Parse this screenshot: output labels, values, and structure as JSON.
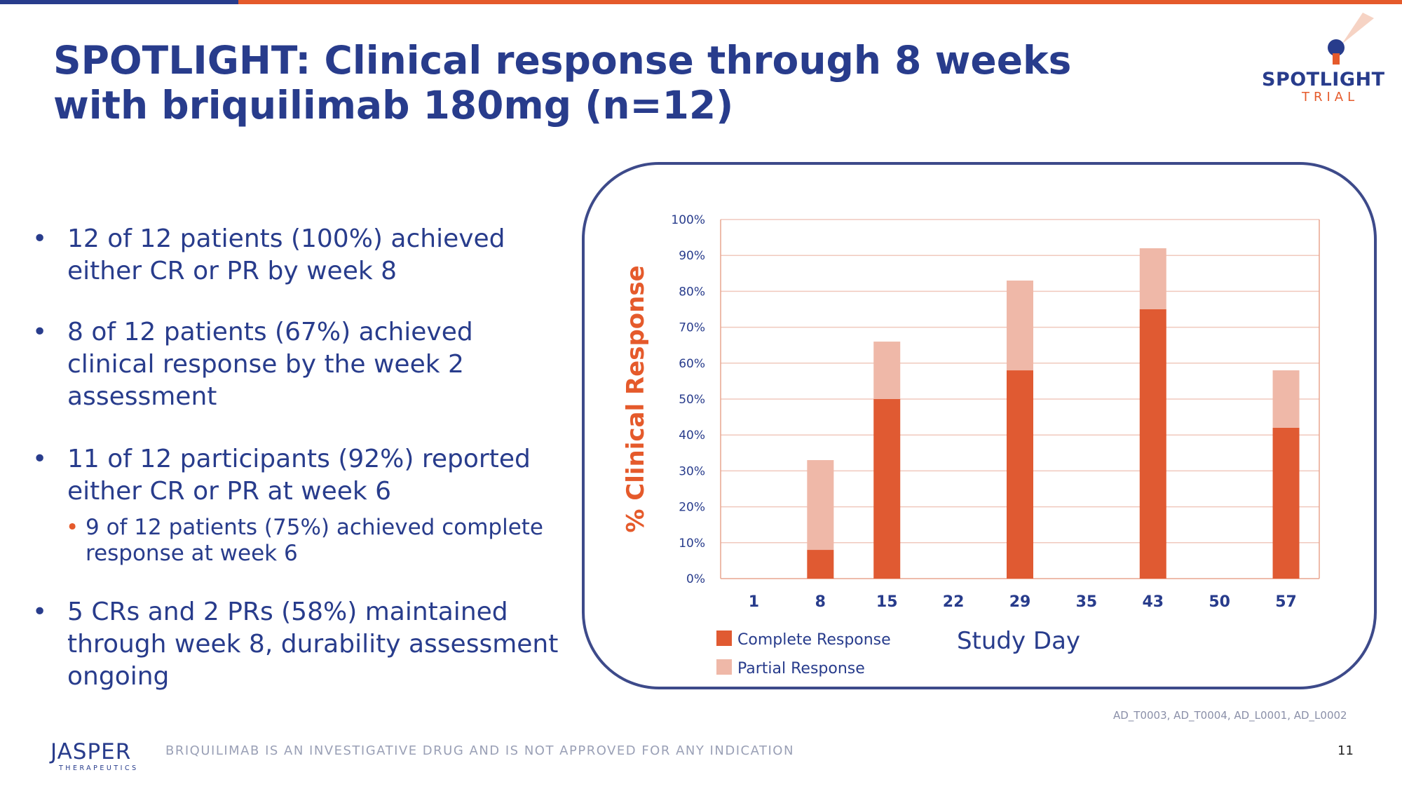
{
  "slide": {
    "title": "SPOTLIGHT: Clinical response through 8 weeks with briquilimab 180mg (n=12)",
    "logo": {
      "name": "SPOTLIGHT",
      "sub": "TRIAL"
    },
    "bullets": [
      "12 of 12 patients (100%) achieved either CR or PR by week 8",
      "8 of 12 patients (67%) achieved clinical response by the week 2 assessment",
      "11 of 12 participants (92%) reported either CR or PR at week 6",
      "5 CRs and 2 PRs (58%) maintained through week 8, durability assessment ongoing"
    ],
    "sub_bullet": "9 of 12 patients (75%) achieved complete response at week 6",
    "references": "AD_T0003, AD_T0004, AD_L0001, AD_L0002",
    "company": {
      "name": "JASPER",
      "sub": "THERAPEUTICS"
    },
    "disclaimer": "BRIQUILIMAB IS AN INVESTIGATIVE DRUG AND IS NOT APPROVED FOR ANY INDICATION",
    "page_number": "11"
  },
  "colors": {
    "brand_blue": "#283c8c",
    "accent_orange": "#e55a2b",
    "complete": "#e05a32",
    "partial": "#efb8a8",
    "grid": "#f0c9bd"
  },
  "chart_data": {
    "type": "bar",
    "stacked": true,
    "title": "",
    "xlabel": "Study Day",
    "ylabel": "% Clinical Response",
    "categories": [
      "1",
      "8",
      "15",
      "22",
      "29",
      "35",
      "43",
      "50",
      "57"
    ],
    "series": [
      {
        "name": "Complete Response",
        "values": [
          0,
          8,
          50,
          0,
          58,
          0,
          75,
          0,
          42
        ]
      },
      {
        "name": "Partial Response",
        "values": [
          0,
          25,
          16,
          0,
          25,
          0,
          17,
          0,
          16
        ]
      }
    ],
    "ylim": [
      0,
      100
    ],
    "yticks": [
      "0%",
      "10%",
      "20%",
      "30%",
      "40%",
      "50%",
      "60%",
      "70%",
      "80%",
      "90%",
      "100%"
    ],
    "grid": true,
    "legend": "bottom-left"
  }
}
